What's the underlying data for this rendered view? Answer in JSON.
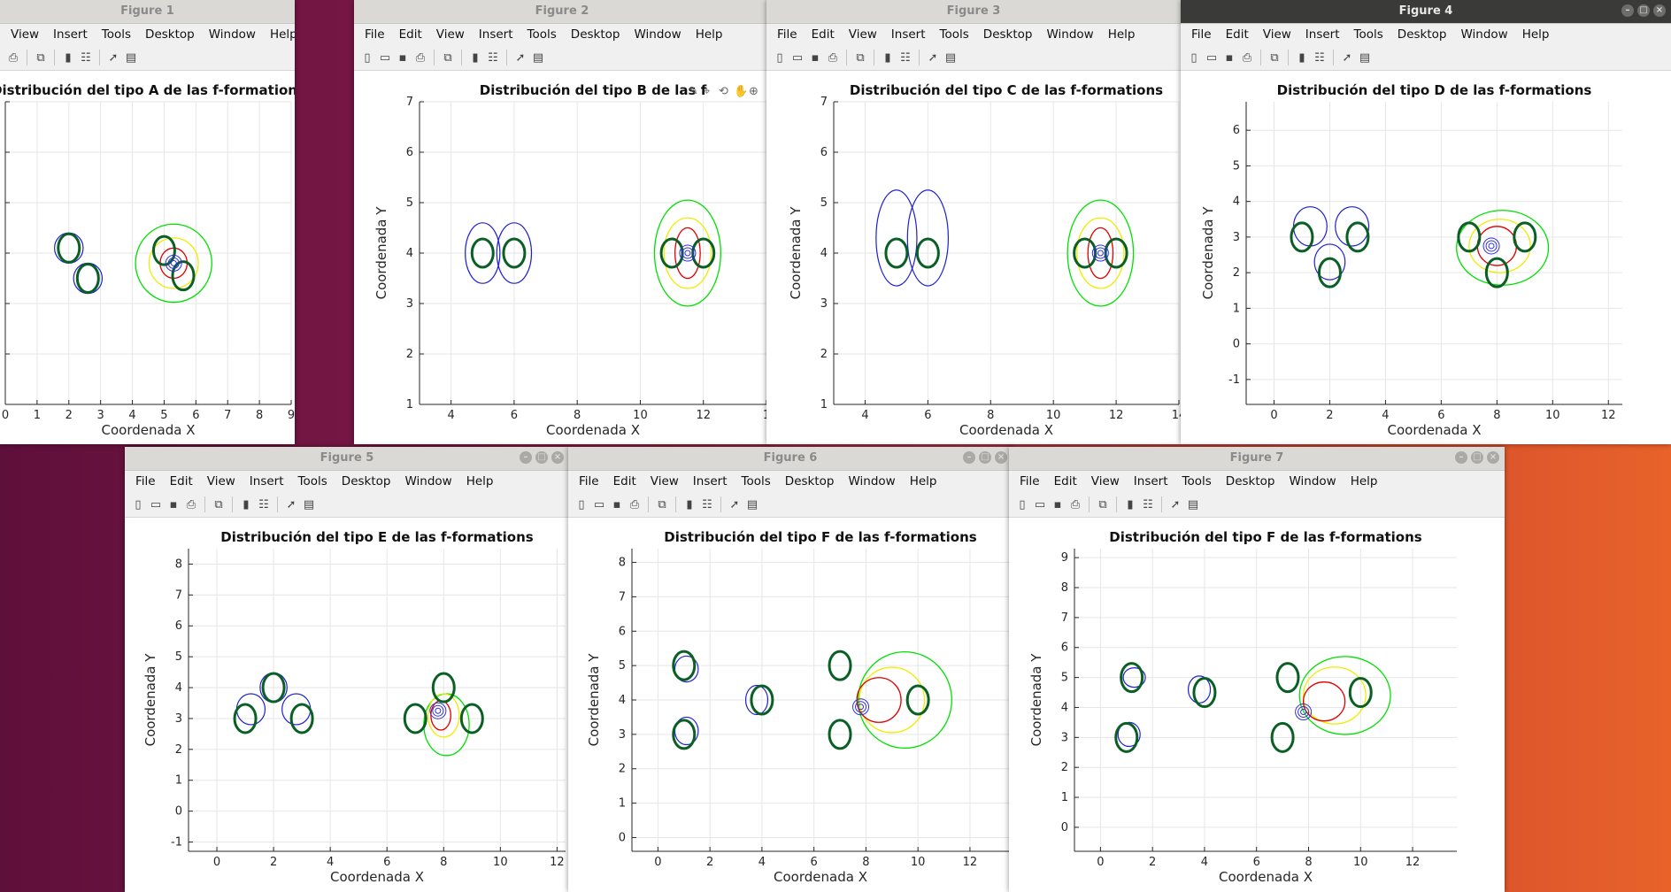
{
  "colors": {
    "titlebar_inactive": "#dad9d6",
    "titlebar_active": "#3a3a38",
    "grid": "#e6e6e6",
    "axis": "#262626",
    "person_blue": "#2020d0",
    "person_green": "#0a5f24",
    "contour_red": "#e00000",
    "contour_yellow": "#eded00",
    "contour_green": "#00e000",
    "center_blue": "#3030e0"
  },
  "icons": [
    "new-file-icon",
    "open-file-icon",
    "save-icon",
    "print-icon",
    "link-icon",
    "colorbar-icon",
    "legend-icon",
    "pointer-icon",
    "property-editor-icon"
  ],
  "figures": [
    {
      "window_title": "Figure 1",
      "menu": [
        "View",
        "Insert",
        "Tools",
        "Desktop",
        "Window",
        "Help"
      ],
      "chart_data": {
        "type": "line",
        "title": "Distribución del tipo A de las f-formations",
        "xlabel": "Coordenada X",
        "ylabel": "",
        "xlim": [
          0,
          9
        ],
        "ylim": [
          1,
          7
        ],
        "xticks": [
          "0",
          "1",
          "2",
          "3",
          "4",
          "5",
          "6",
          "7",
          "8",
          "9"
        ],
        "yticks": [],
        "grid": true,
        "groups": [
          {
            "people": [
              [
                2,
                4.1
              ],
              [
                2.6,
                3.5
              ]
            ],
            "regions": [
              {
                "x": 2,
                "y": 4.1,
                "rx": 0.9,
                "ry": 0.6
              },
              {
                "x": 2.6,
                "y": 3.5,
                "rx": 0.9,
                "ry": 0.6
              }
            ]
          },
          {
            "people": [
              [
                5,
                4.05
              ],
              [
                5.6,
                3.55
              ]
            ],
            "center": [
              5.3,
              3.8
            ],
            "contours": {
              "green": {
                "x": 5.3,
                "y": 3.8,
                "rx": 2.4,
                "ry": 1.55
              },
              "yellow": {
                "x": 5.3,
                "y": 3.8,
                "rx": 1.55,
                "ry": 1.0
              },
              "red": {
                "x": 5.3,
                "y": 3.8,
                "rx": 0.85,
                "ry": 0.6
              }
            }
          }
        ]
      }
    },
    {
      "window_title": "Figure 2",
      "menu": [
        "File",
        "Edit",
        "View",
        "Insert",
        "Tools",
        "Desktop",
        "Window",
        "Help"
      ],
      "chart_data": {
        "type": "line",
        "title": "Distribución del tipo B de las f",
        "xlabel": "Coordenada X",
        "ylabel": "Coordenada Y",
        "xlim": [
          3,
          14
        ],
        "ylim": [
          1,
          7
        ],
        "xticks": [
          "4",
          "6",
          "8",
          "10",
          "12",
          "1"
        ],
        "yticks": [
          "1",
          "2",
          "3",
          "4",
          "5",
          "6",
          "7"
        ],
        "grid": true,
        "groups": [
          {
            "people": [
              [
                5,
                4
              ],
              [
                6,
                4
              ]
            ],
            "regions": [
              {
                "x": 5,
                "y": 4,
                "rx": 1.1,
                "ry": 1.2
              },
              {
                "x": 6,
                "y": 4,
                "rx": 1.1,
                "ry": 1.2
              }
            ]
          },
          {
            "people": [
              [
                11,
                4
              ],
              [
                12,
                4
              ]
            ],
            "center": [
              11.5,
              4
            ],
            "contours": {
              "green": {
                "x": 11.5,
                "y": 4,
                "rx": 2.1,
                "ry": 2.1
              },
              "yellow": {
                "x": 11.5,
                "y": 4,
                "rx": 1.5,
                "ry": 1.4
              },
              "red": {
                "x": 11.5,
                "y": 4,
                "rx": 0.8,
                "ry": 1.0
              }
            }
          }
        ]
      }
    },
    {
      "window_title": "Figure 3",
      "menu": [
        "File",
        "Edit",
        "View",
        "Insert",
        "Tools",
        "Desktop",
        "Window",
        "Help"
      ],
      "chart_data": {
        "type": "line",
        "title": "Distribución del tipo C de las f-formations",
        "xlabel": "Coordenada X",
        "ylabel": "Coordenada Y",
        "xlim": [
          3,
          14
        ],
        "ylim": [
          1,
          7
        ],
        "xticks": [
          "4",
          "6",
          "8",
          "10",
          "12",
          "14"
        ],
        "yticks": [
          "1",
          "2",
          "3",
          "4",
          "5",
          "6",
          "7"
        ],
        "grid": true,
        "groups": [
          {
            "people": [
              [
                5,
                4
              ],
              [
                6,
                4
              ]
            ],
            "regions": [
              {
                "x": 5,
                "y": 4.3,
                "rx": 1.3,
                "ry": 1.9
              },
              {
                "x": 6,
                "y": 4.3,
                "rx": 1.3,
                "ry": 1.9
              }
            ]
          },
          {
            "people": [
              [
                11,
                4
              ],
              [
                12,
                4
              ]
            ],
            "center": [
              11.5,
              4
            ],
            "contours": {
              "green": {
                "x": 11.5,
                "y": 4,
                "rx": 2.1,
                "ry": 2.1
              },
              "yellow": {
                "x": 11.5,
                "y": 4,
                "rx": 1.5,
                "ry": 1.4
              },
              "red": {
                "x": 11.5,
                "y": 4,
                "rx": 0.8,
                "ry": 1.0
              }
            }
          }
        ]
      }
    },
    {
      "window_title": "Figure 4",
      "menu": [
        "File",
        "Edit",
        "View",
        "Insert",
        "Tools",
        "Desktop",
        "Window",
        "Help"
      ],
      "chart_data": {
        "type": "line",
        "title": "Distribución del tipo D de las f-formations",
        "xlabel": "Coordenada X",
        "ylabel": "Coordenada Y",
        "xlim": [
          -1,
          12.5
        ],
        "ylim": [
          -1.7,
          6.8
        ],
        "xticks": [
          "0",
          "2",
          "4",
          "6",
          "8",
          "10",
          "12"
        ],
        "yticks": [
          "-1",
          "0",
          "1",
          "2",
          "3",
          "4",
          "5",
          "6"
        ],
        "grid": true,
        "groups": [
          {
            "people": [
              [
                1,
                3
              ],
              [
                3,
                3
              ],
              [
                2,
                2
              ]
            ],
            "regions": [
              {
                "x": 1.3,
                "y": 3.3,
                "rx": 1.2,
                "ry": 1.1
              },
              {
                "x": 2.8,
                "y": 3.3,
                "rx": 1.2,
                "ry": 1.1
              },
              {
                "x": 2,
                "y": 2.3,
                "rx": 1.1,
                "ry": 1.0
              }
            ]
          },
          {
            "people": [
              [
                7,
                3
              ],
              [
                9,
                3
              ],
              [
                8,
                2
              ]
            ],
            "center": [
              7.8,
              2.75
            ],
            "contours": {
              "green": {
                "x": 8.2,
                "y": 2.7,
                "rx": 3.3,
                "ry": 2.1
              },
              "yellow": {
                "x": 8.1,
                "y": 2.75,
                "rx": 2.2,
                "ry": 1.5
              },
              "red": {
                "x": 8,
                "y": 2.75,
                "rx": 1.4,
                "ry": 1.1
              }
            }
          }
        ]
      }
    },
    {
      "window_title": "Figure 5",
      "menu": [
        "File",
        "Edit",
        "View",
        "Insert",
        "Tools",
        "Desktop",
        "Window",
        "Help"
      ],
      "chart_data": {
        "type": "line",
        "title": "Distribución del tipo E de las f-formations",
        "xlabel": "Coordenada X",
        "ylabel": "Coordenada Y",
        "xlim": [
          -1,
          12.3
        ],
        "ylim": [
          -1.3,
          8.5
        ],
        "xticks": [
          "0",
          "2",
          "4",
          "6",
          "8",
          "10",
          "12"
        ],
        "yticks": [
          "-1",
          "0",
          "1",
          "2",
          "3",
          "4",
          "5",
          "6",
          "7",
          "8"
        ],
        "grid": true,
        "groups": [
          {
            "people": [
              [
                1,
                3
              ],
              [
                2,
                4
              ],
              [
                3,
                3
              ]
            ],
            "regions": [
              {
                "x": 1.2,
                "y": 3.3,
                "rx": 1.0,
                "ry": 1.0
              },
              {
                "x": 2,
                "y": 4,
                "rx": 0.95,
                "ry": 0.95
              },
              {
                "x": 2.8,
                "y": 3.3,
                "rx": 1.0,
                "ry": 1.0
              }
            ]
          },
          {
            "people": [
              [
                7,
                3
              ],
              [
                8,
                4
              ],
              [
                9,
                3
              ]
            ],
            "center": [
              7.8,
              3.25
            ],
            "contours": {
              "green": {
                "x": 8.1,
                "y": 2.8,
                "rx": 1.6,
                "ry": 2.0
              },
              "yellow": {
                "x": 8,
                "y": 3.1,
                "rx": 1.1,
                "ry": 1.4
              },
              "red": {
                "x": 7.9,
                "y": 3.1,
                "rx": 0.7,
                "ry": 0.95
              }
            }
          }
        ]
      }
    },
    {
      "window_title": "Figure 6",
      "menu": [
        "File",
        "Edit",
        "View",
        "Insert",
        "Tools",
        "Desktop",
        "Window",
        "Help"
      ],
      "chart_data": {
        "type": "line",
        "title": "Distribución del tipo F de las f-formations",
        "xlabel": "Coordenada X",
        "ylabel": "Coordenada Y",
        "xlim": [
          -1,
          13.5
        ],
        "ylim": [
          -0.4,
          8.4
        ],
        "xticks": [
          "0",
          "2",
          "4",
          "6",
          "8",
          "10",
          "12"
        ],
        "yticks": [
          "0",
          "1",
          "2",
          "3",
          "4",
          "5",
          "6",
          "7",
          "8"
        ],
        "grid": true,
        "groups": [
          {
            "people": [
              [
                1,
                5
              ],
              [
                1,
                3
              ],
              [
                4,
                4
              ]
            ],
            "regions": [
              {
                "x": 1.1,
                "y": 4.9,
                "rx": 0.9,
                "ry": 0.75
              },
              {
                "x": 1.1,
                "y": 3.1,
                "rx": 0.9,
                "ry": 0.8
              },
              {
                "x": 3.8,
                "y": 4,
                "rx": 0.85,
                "ry": 0.85
              }
            ]
          },
          {
            "people": [
              [
                7,
                5
              ],
              [
                10,
                4
              ],
              [
                7,
                3
              ]
            ],
            "center": [
              7.8,
              3.8
            ],
            "contours": {
              "green": {
                "x": 9.5,
                "y": 4,
                "rx": 3.6,
                "ry": 2.8
              },
              "yellow": {
                "x": 9,
                "y": 4,
                "rx": 2.5,
                "ry": 1.9
              },
              "red": {
                "x": 8.5,
                "y": 4,
                "rx": 1.7,
                "ry": 1.3
              }
            }
          }
        ]
      }
    },
    {
      "window_title": "Figure 7",
      "menu": [
        "File",
        "Edit",
        "View",
        "Insert",
        "Tools",
        "Desktop",
        "Window",
        "Help"
      ],
      "chart_data": {
        "type": "line",
        "title": "Distribución del tipo F de las f-formations",
        "xlabel": "Coordenada X",
        "ylabel": "Coordenada Y",
        "xlim": [
          -1,
          13.7
        ],
        "ylim": [
          -0.8,
          9.3
        ],
        "xticks": [
          "0",
          "2",
          "4",
          "6",
          "8",
          "10",
          "12"
        ],
        "yticks": [
          "0",
          "1",
          "2",
          "3",
          "4",
          "5",
          "6",
          "7",
          "8",
          "9"
        ],
        "grid": true,
        "groups": [
          {
            "people": [
              [
                1.2,
                5
              ],
              [
                1,
                3
              ],
              [
                4,
                4.5
              ]
            ],
            "regions": [
              {
                "x": 1.3,
                "y": 5,
                "rx": 0.85,
                "ry": 0.65
              },
              {
                "x": 1.1,
                "y": 3.1,
                "rx": 0.85,
                "ry": 0.8
              },
              {
                "x": 3.8,
                "y": 4.6,
                "rx": 0.85,
                "ry": 0.9
              }
            ]
          },
          {
            "people": [
              [
                7.2,
                5
              ],
              [
                10,
                4.5
              ],
              [
                7,
                3
              ]
            ],
            "center": [
              7.8,
              3.85
            ],
            "contours": {
              "green": {
                "x": 9.4,
                "y": 4.4,
                "rx": 3.5,
                "ry": 2.6
              },
              "yellow": {
                "x": 9,
                "y": 4.4,
                "rx": 2.4,
                "ry": 1.9
              },
              "red": {
                "x": 8.6,
                "y": 4.2,
                "rx": 1.6,
                "ry": 1.3
              }
            }
          }
        ]
      }
    }
  ]
}
